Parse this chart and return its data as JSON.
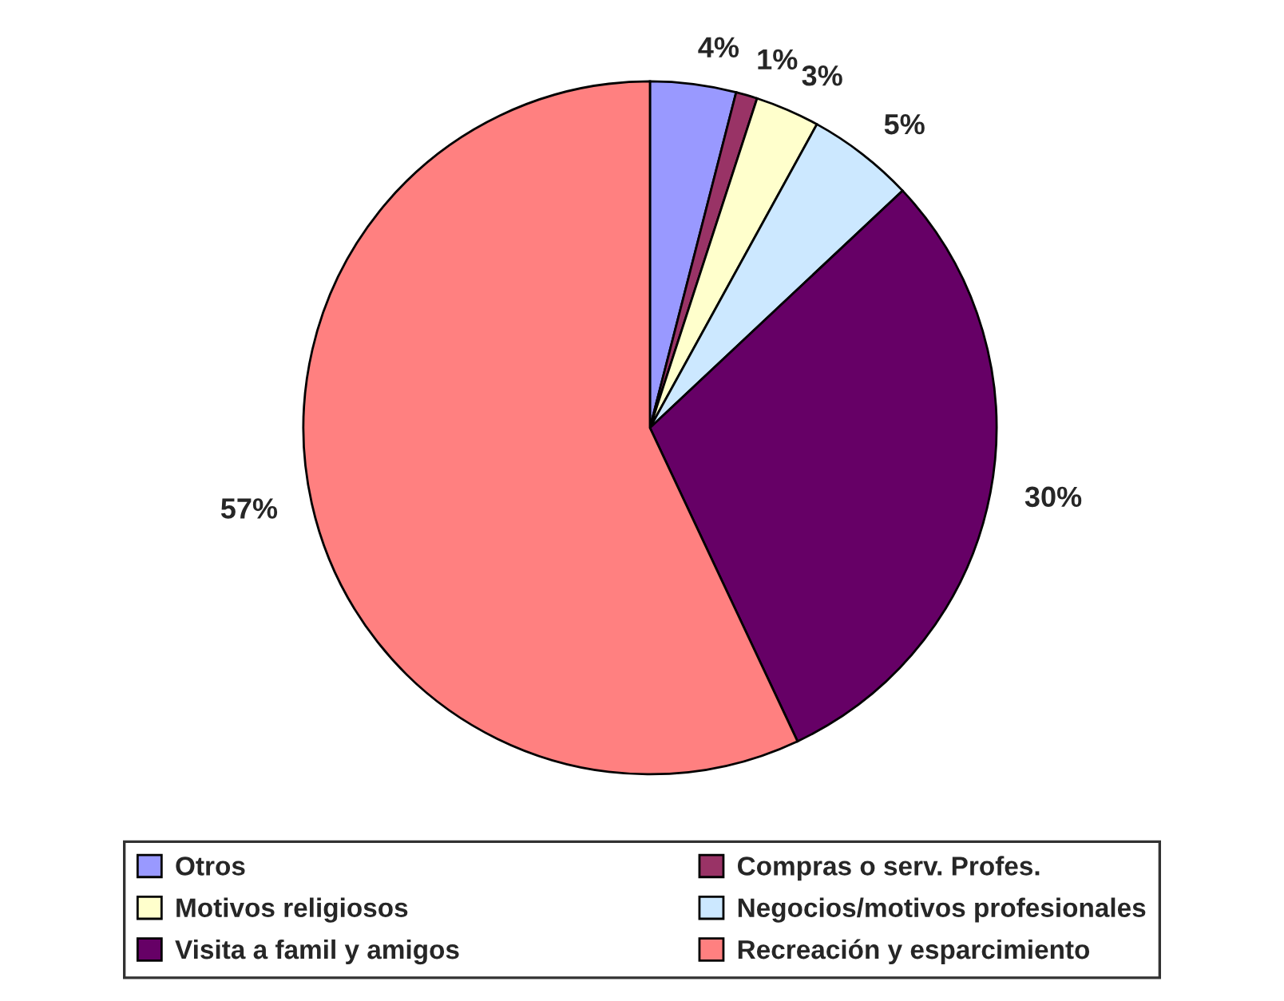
{
  "chart_data": {
    "type": "pie",
    "categories": [
      "Otros",
      "Compras o serv. Profes.",
      "Motivos religiosos",
      "Negocios/motivos profesionales",
      "Visita a famil y amigos",
      "Recreación y esparcimiento"
    ],
    "values": [
      4,
      1,
      3,
      5,
      30,
      57
    ],
    "value_labels": [
      "4%",
      "1%",
      "3%",
      "5%",
      "30%",
      "57%"
    ],
    "colors": [
      "#9999ff",
      "#993366",
      "#ffffcc",
      "#cce8ff",
      "#660066",
      "#ff8080"
    ],
    "legend": "bottom"
  }
}
